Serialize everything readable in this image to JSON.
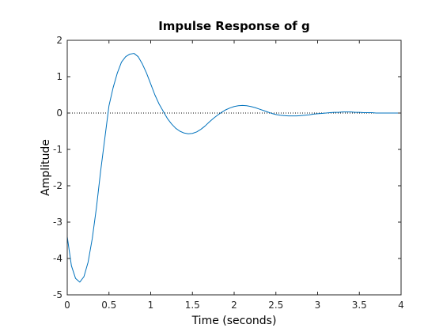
{
  "chart_data": {
    "type": "line",
    "title": "Impulse Response of g",
    "xlabel": "Time (seconds)",
    "ylabel": "Amplitude",
    "xlim": [
      0,
      4
    ],
    "ylim": [
      -5,
      2
    ],
    "xticks": [
      "0",
      "0.5",
      "1",
      "1.5",
      "2",
      "2.5",
      "3",
      "3.5",
      "4"
    ],
    "yticks": [
      "2",
      "1",
      "0",
      "-1",
      "-2",
      "-3",
      "-4",
      "-5"
    ],
    "grid": false,
    "legend": "none",
    "reference_line": {
      "y": 0,
      "style": "dotted"
    },
    "series_color": "#0072BD",
    "series": [
      {
        "x": [
          0,
          0.05,
          0.1,
          0.15,
          0.2,
          0.25,
          0.3,
          0.35,
          0.4,
          0.45,
          0.5,
          0.55,
          0.6,
          0.65,
          0.7,
          0.75,
          0.8,
          0.85,
          0.9,
          0.95,
          1.0,
          1.05,
          1.1,
          1.15,
          1.2,
          1.25,
          1.3,
          1.35,
          1.4,
          1.45,
          1.5,
          1.55,
          1.6,
          1.65,
          1.7,
          1.75,
          1.8,
          1.85,
          1.9,
          1.95,
          2.0,
          2.05,
          2.1,
          2.15,
          2.2,
          2.25,
          2.3,
          2.35,
          2.4,
          2.45,
          2.5,
          2.55,
          2.6,
          2.65,
          2.7,
          2.75,
          2.8,
          2.85,
          2.9,
          2.95,
          3.0,
          3.05,
          3.1,
          3.15,
          3.2,
          3.25,
          3.3,
          3.35,
          3.4,
          3.45,
          3.5,
          3.55,
          3.6,
          3.65,
          3.7,
          3.75,
          3.8,
          3.85,
          3.9,
          3.95,
          4.0
        ],
        "values": [
          -3.4,
          -4.2,
          -4.55,
          -4.65,
          -4.5,
          -4.1,
          -3.45,
          -2.6,
          -1.6,
          -0.7,
          0.2,
          0.7,
          1.1,
          1.4,
          1.55,
          1.62,
          1.64,
          1.55,
          1.35,
          1.1,
          0.8,
          0.5,
          0.25,
          0.05,
          -0.15,
          -0.3,
          -0.42,
          -0.5,
          -0.55,
          -0.57,
          -0.56,
          -0.52,
          -0.45,
          -0.36,
          -0.25,
          -0.15,
          -0.06,
          0.02,
          0.09,
          0.14,
          0.18,
          0.2,
          0.21,
          0.2,
          0.18,
          0.15,
          0.11,
          0.07,
          0.03,
          -0.01,
          -0.04,
          -0.06,
          -0.07,
          -0.08,
          -0.08,
          -0.08,
          -0.07,
          -0.06,
          -0.05,
          -0.03,
          -0.02,
          -0.01,
          0.0,
          0.01,
          0.02,
          0.02,
          0.03,
          0.03,
          0.03,
          0.02,
          0.02,
          0.01,
          0.01,
          0.01,
          0.0,
          0.0,
          0.0,
          0.0,
          0.0,
          0.0,
          0.0
        ]
      }
    ]
  }
}
